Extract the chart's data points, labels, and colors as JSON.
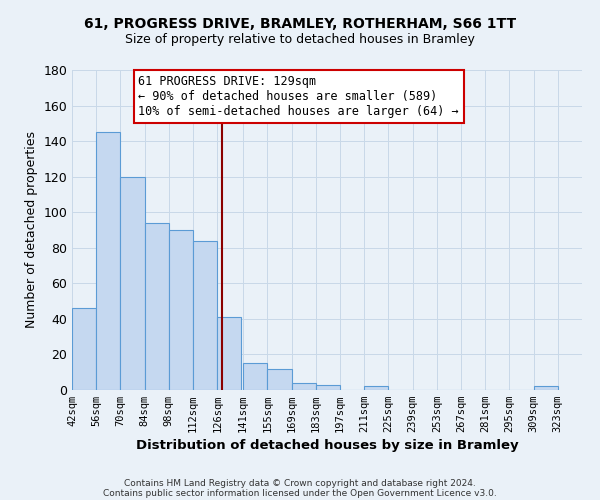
{
  "title_line1": "61, PROGRESS DRIVE, BRAMLEY, ROTHERHAM, S66 1TT",
  "title_line2": "Size of property relative to detached houses in Bramley",
  "xlabel": "Distribution of detached houses by size in Bramley",
  "ylabel": "Number of detached properties",
  "bar_left_edges": [
    42,
    56,
    70,
    84,
    98,
    112,
    126,
    141,
    155,
    169,
    183,
    197,
    211,
    225,
    239,
    253,
    267,
    281,
    295,
    309
  ],
  "bar_heights": [
    46,
    145,
    120,
    94,
    90,
    84,
    41,
    15,
    12,
    4,
    3,
    0,
    2,
    0,
    0,
    0,
    0,
    0,
    0,
    2
  ],
  "bin_width": 14,
  "bar_color": "#c5d8f0",
  "bar_edge_color": "#5b9bd5",
  "grid_color": "#c8d8e8",
  "background_color": "#eaf1f8",
  "vline_x": 129,
  "vline_color": "#8b0000",
  "ylim": [
    0,
    180
  ],
  "yticks": [
    0,
    20,
    40,
    60,
    80,
    100,
    120,
    140,
    160,
    180
  ],
  "xtick_labels": [
    "42sqm",
    "56sqm",
    "70sqm",
    "84sqm",
    "98sqm",
    "112sqm",
    "126sqm",
    "141sqm",
    "155sqm",
    "169sqm",
    "183sqm",
    "197sqm",
    "211sqm",
    "225sqm",
    "239sqm",
    "253sqm",
    "267sqm",
    "281sqm",
    "295sqm",
    "309sqm",
    "323sqm"
  ],
  "xtick_positions": [
    42,
    56,
    70,
    84,
    98,
    112,
    126,
    141,
    155,
    169,
    183,
    197,
    211,
    225,
    239,
    253,
    267,
    281,
    295,
    309,
    323
  ],
  "annotation_box_text_line1": "61 PROGRESS DRIVE: 129sqm",
  "annotation_box_text_line2": "← 90% of detached houses are smaller (589)",
  "annotation_box_text_line3": "10% of semi-detached houses are larger (64) →",
  "footnote_line1": "Contains HM Land Registry data © Crown copyright and database right 2024.",
  "footnote_line2": "Contains public sector information licensed under the Open Government Licence v3.0."
}
